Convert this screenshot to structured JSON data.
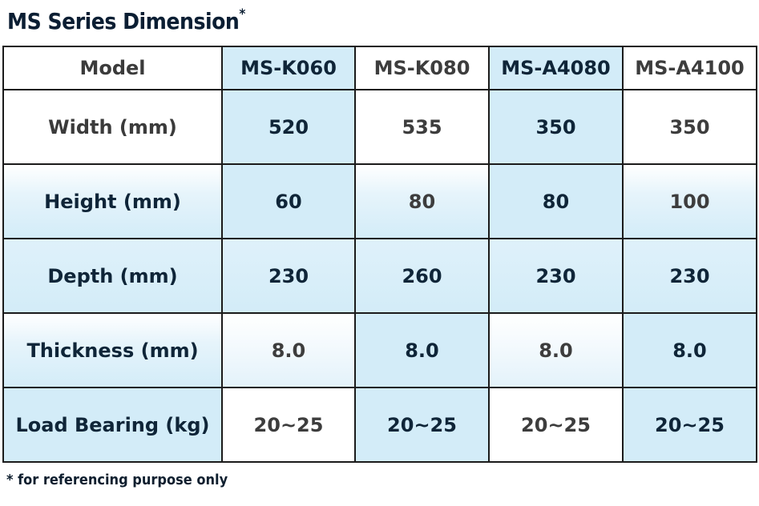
{
  "title": {
    "text": "MS Series Dimension",
    "marker": "*"
  },
  "table": {
    "header_label": "Model",
    "models": [
      "MS-K060",
      "MS-K080",
      "MS-A4080",
      "MS-A4100"
    ],
    "rows": [
      {
        "label": "Width (mm)",
        "values": [
          "520",
          "535",
          "350",
          "350"
        ]
      },
      {
        "label": "Height (mm)",
        "values": [
          "60",
          "80",
          "80",
          "100"
        ]
      },
      {
        "label": "Depth (mm)",
        "values": [
          "230",
          "260",
          "230",
          "230"
        ]
      },
      {
        "label": "Thickness (mm)",
        "values": [
          "8.0",
          "8.0",
          "8.0",
          "8.0"
        ]
      },
      {
        "label": "Load Bearing (kg)",
        "values": [
          "20~25",
          "20~25",
          "20~25",
          "20~25"
        ]
      }
    ]
  },
  "footnote": "* for referencing purpose only",
  "colors": {
    "highlight": "#d3ecf8",
    "border": "#1b1b1b",
    "text": "#0f2538"
  }
}
